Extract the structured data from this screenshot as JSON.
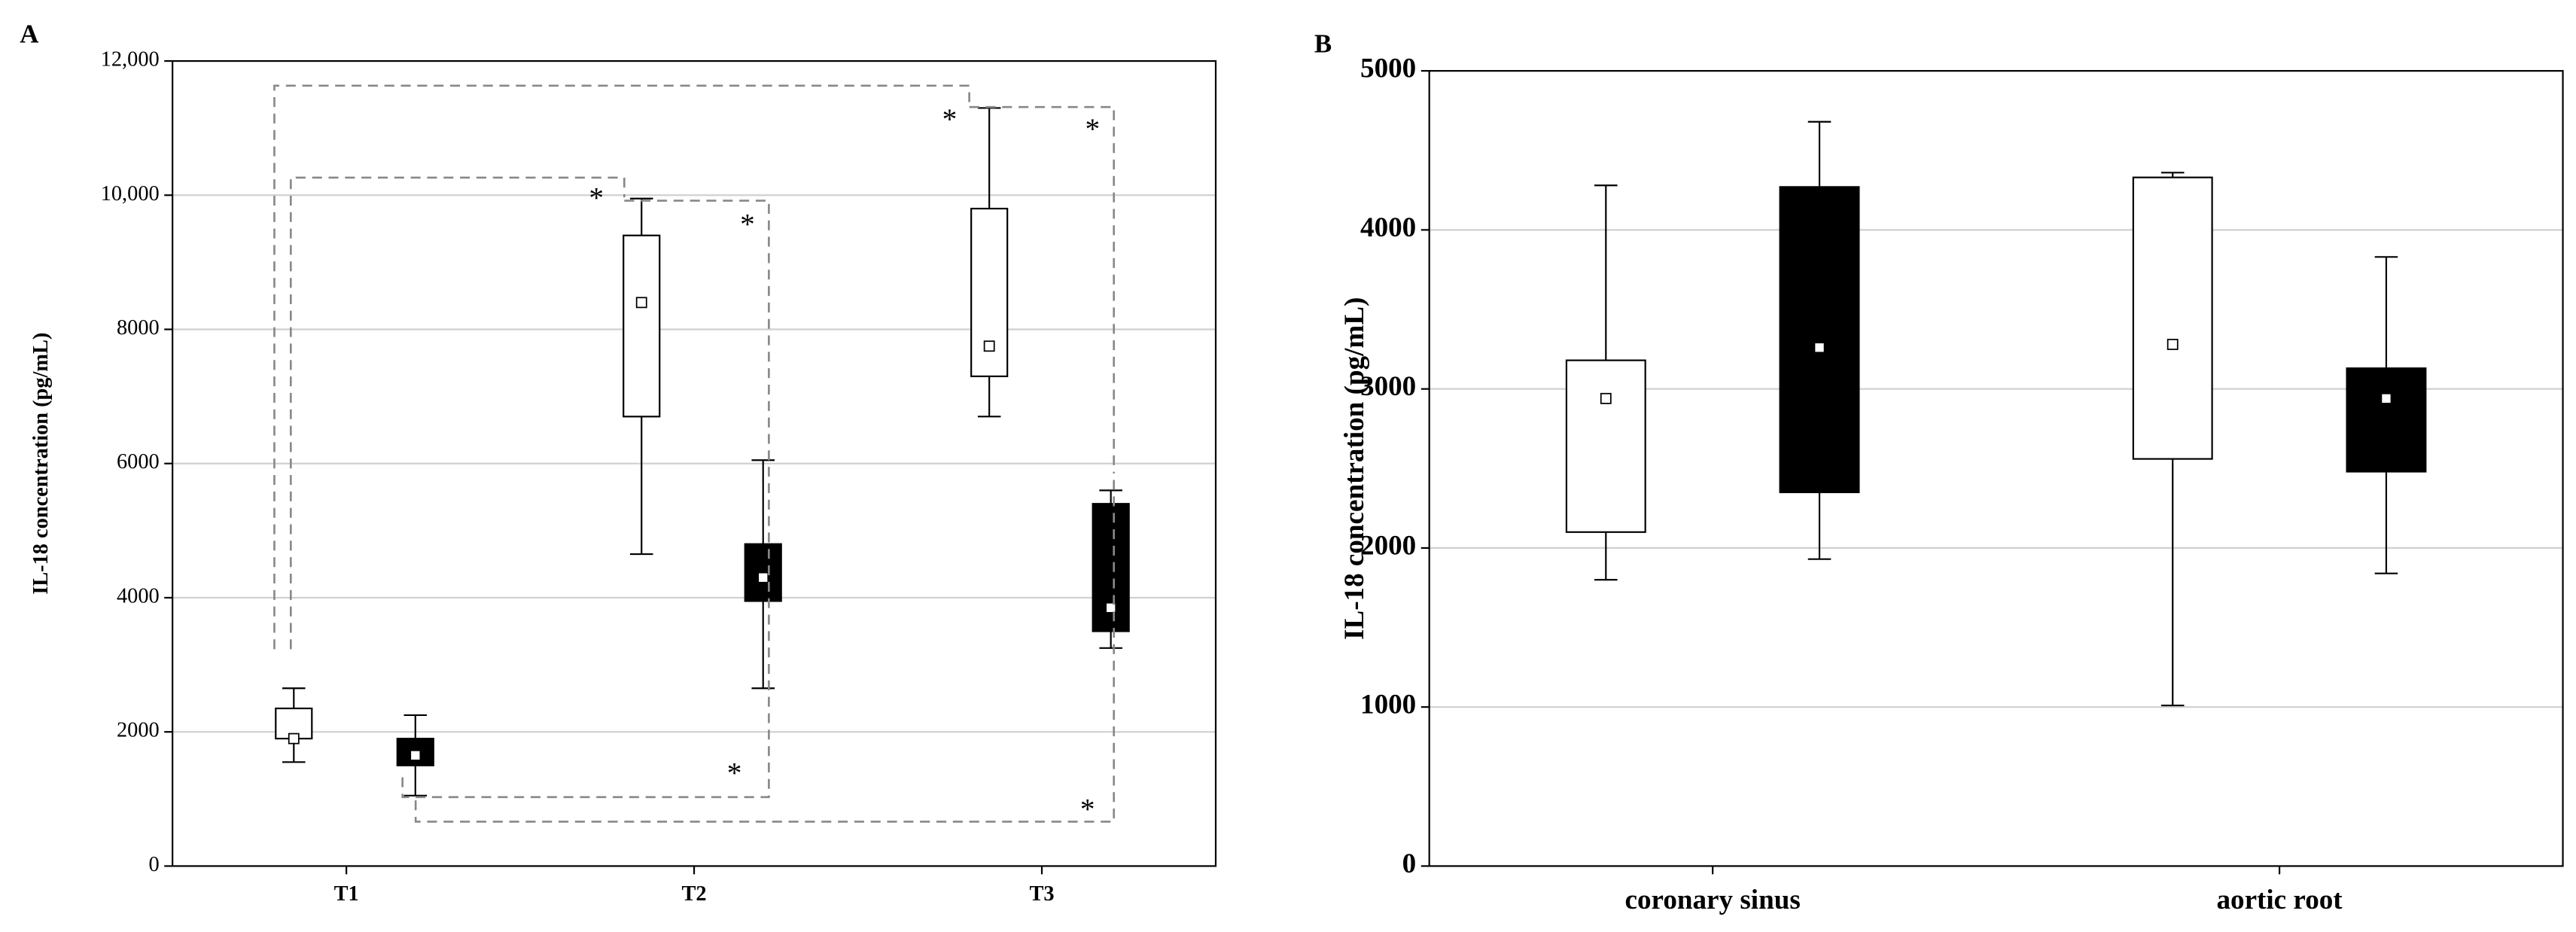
{
  "chart_data": [
    {
      "type": "box",
      "panel": "A",
      "ylabel": "IL-18 concentration (pg/mL)",
      "categories": [
        "T1",
        "T2",
        "T3"
      ],
      "ylim": [
        0,
        12000
      ],
      "yticks": [
        0,
        2000,
        4000,
        6000,
        8000,
        {
          "value": 10000,
          "label": "10,000"
        },
        {
          "value": 12000,
          "label": "12,000"
        }
      ],
      "grid": true,
      "series": [
        {
          "color": "#ffffff",
          "min": [
            1550,
            4650,
            6700
          ],
          "q1": [
            1900,
            6700,
            7300
          ],
          "median": [
            1900,
            8400,
            7750
          ],
          "q3": [
            2350,
            9400,
            9800
          ],
          "max": [
            2650,
            9950,
            11300
          ]
        },
        {
          "color": "#000000",
          "min": [
            1050,
            2650,
            3250
          ],
          "q1": [
            1500,
            3950,
            3500
          ],
          "median": [
            1650,
            4300,
            3850
          ],
          "q3": [
            1900,
            4800,
            5400
          ],
          "max": [
            2250,
            6050,
            5600
          ]
        }
      ],
      "annotations": [
        "*",
        "*",
        "*",
        "*",
        "*",
        "*"
      ]
    },
    {
      "type": "box",
      "panel": "B",
      "ylabel": "IL-18 concentration (pg/mL)",
      "categories": [
        "coronary sinus",
        "aortic root"
      ],
      "ylim": [
        0,
        5000
      ],
      "yticks": [
        0,
        1000,
        2000,
        3000,
        4000,
        5000
      ],
      "grid": true,
      "series": [
        {
          "color": "#ffffff",
          "min": [
            1800,
            1010
          ],
          "q1": [
            2100,
            2560
          ],
          "median": [
            2940,
            3280
          ],
          "q3": [
            3180,
            4330
          ],
          "max": [
            4280,
            4360
          ]
        },
        {
          "color": "#000000",
          "min": [
            1930,
            1840
          ],
          "q1": [
            2350,
            2480
          ],
          "median": [
            3260,
            2940
          ],
          "q3": [
            4270,
            3130
          ],
          "max": [
            4680,
            3830
          ]
        }
      ]
    }
  ]
}
